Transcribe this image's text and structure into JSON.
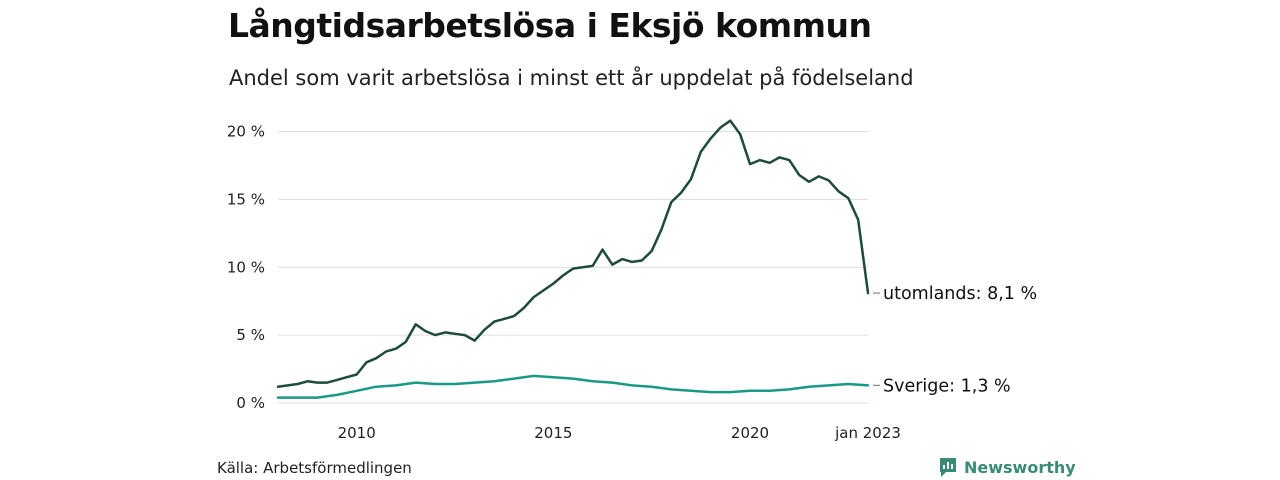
{
  "title": "Långtidsarbetslösa i Eksjö kommun",
  "subtitle": "Andel som varit arbetslösa i minst ett år uppdelat på födelseland",
  "source": "Källa: Arbetsförmedlingen",
  "brand": "Newsworthy",
  "colors": {
    "utomlands": "#1f4a3c",
    "sverige": "#1a9985",
    "grid": "#dddddd",
    "brand": "#3a8a77"
  },
  "chart_data": {
    "type": "line",
    "xlim": [
      2008.0,
      2023.0
    ],
    "ylim": [
      0,
      21
    ],
    "y_ticks": [
      {
        "value": 0,
        "label": "0 %"
      },
      {
        "value": 5,
        "label": "5 %"
      },
      {
        "value": 10,
        "label": "10 %"
      },
      {
        "value": 15,
        "label": "15 %"
      },
      {
        "value": 20,
        "label": "20 %"
      }
    ],
    "x_ticks": [
      {
        "value": 2010,
        "label": "2010"
      },
      {
        "value": 2015,
        "label": "2015"
      },
      {
        "value": 2020,
        "label": "2020"
      },
      {
        "value": 2023,
        "label": "jan 2023"
      }
    ],
    "grid": "horizontal",
    "series": [
      {
        "name": "utomlands",
        "end_label": "utomlands: 8,1 %",
        "color": "#1f4a3c",
        "points": [
          [
            2008.0,
            1.2
          ],
          [
            2008.25,
            1.3
          ],
          [
            2008.5,
            1.4
          ],
          [
            2008.75,
            1.6
          ],
          [
            2009.0,
            1.5
          ],
          [
            2009.25,
            1.5
          ],
          [
            2009.5,
            1.7
          ],
          [
            2009.75,
            1.9
          ],
          [
            2010.0,
            2.1
          ],
          [
            2010.25,
            3.0
          ],
          [
            2010.5,
            3.3
          ],
          [
            2010.75,
            3.8
          ],
          [
            2011.0,
            4.0
          ],
          [
            2011.25,
            4.5
          ],
          [
            2011.5,
            5.8
          ],
          [
            2011.75,
            5.3
          ],
          [
            2012.0,
            5.0
          ],
          [
            2012.25,
            5.2
          ],
          [
            2012.5,
            5.1
          ],
          [
            2012.75,
            5.0
          ],
          [
            2013.0,
            4.6
          ],
          [
            2013.25,
            5.4
          ],
          [
            2013.5,
            6.0
          ],
          [
            2013.75,
            6.2
          ],
          [
            2014.0,
            6.4
          ],
          [
            2014.25,
            7.0
          ],
          [
            2014.5,
            7.8
          ],
          [
            2014.75,
            8.3
          ],
          [
            2015.0,
            8.8
          ],
          [
            2015.25,
            9.4
          ],
          [
            2015.5,
            9.9
          ],
          [
            2015.75,
            10.0
          ],
          [
            2016.0,
            10.1
          ],
          [
            2016.25,
            11.3
          ],
          [
            2016.5,
            10.2
          ],
          [
            2016.75,
            10.6
          ],
          [
            2017.0,
            10.4
          ],
          [
            2017.25,
            10.5
          ],
          [
            2017.5,
            11.2
          ],
          [
            2017.75,
            12.8
          ],
          [
            2018.0,
            14.8
          ],
          [
            2018.25,
            15.5
          ],
          [
            2018.5,
            16.5
          ],
          [
            2018.75,
            18.5
          ],
          [
            2019.0,
            19.5
          ],
          [
            2019.25,
            20.3
          ],
          [
            2019.5,
            20.8
          ],
          [
            2019.75,
            19.8
          ],
          [
            2020.0,
            17.6
          ],
          [
            2020.25,
            17.9
          ],
          [
            2020.5,
            17.7
          ],
          [
            2020.75,
            18.1
          ],
          [
            2021.0,
            17.9
          ],
          [
            2021.25,
            16.8
          ],
          [
            2021.5,
            16.3
          ],
          [
            2021.75,
            16.7
          ],
          [
            2022.0,
            16.4
          ],
          [
            2022.25,
            15.6
          ],
          [
            2022.5,
            15.1
          ],
          [
            2022.75,
            13.5
          ],
          [
            2023.0,
            8.1
          ]
        ]
      },
      {
        "name": "Sverige",
        "end_label": "Sverige: 1,3 %",
        "color": "#1a9985",
        "points": [
          [
            2008.0,
            0.4
          ],
          [
            2008.5,
            0.4
          ],
          [
            2009.0,
            0.4
          ],
          [
            2009.5,
            0.6
          ],
          [
            2010.0,
            0.9
          ],
          [
            2010.5,
            1.2
          ],
          [
            2011.0,
            1.3
          ],
          [
            2011.5,
            1.5
          ],
          [
            2012.0,
            1.4
          ],
          [
            2012.5,
            1.4
          ],
          [
            2013.0,
            1.5
          ],
          [
            2013.5,
            1.6
          ],
          [
            2014.0,
            1.8
          ],
          [
            2014.5,
            2.0
          ],
          [
            2015.0,
            1.9
          ],
          [
            2015.5,
            1.8
          ],
          [
            2016.0,
            1.6
          ],
          [
            2016.5,
            1.5
          ],
          [
            2017.0,
            1.3
          ],
          [
            2017.5,
            1.2
          ],
          [
            2018.0,
            1.0
          ],
          [
            2018.5,
            0.9
          ],
          [
            2019.0,
            0.8
          ],
          [
            2019.5,
            0.8
          ],
          [
            2020.0,
            0.9
          ],
          [
            2020.5,
            0.9
          ],
          [
            2021.0,
            1.0
          ],
          [
            2021.5,
            1.2
          ],
          [
            2022.0,
            1.3
          ],
          [
            2022.5,
            1.4
          ],
          [
            2023.0,
            1.3
          ]
        ]
      }
    ]
  }
}
